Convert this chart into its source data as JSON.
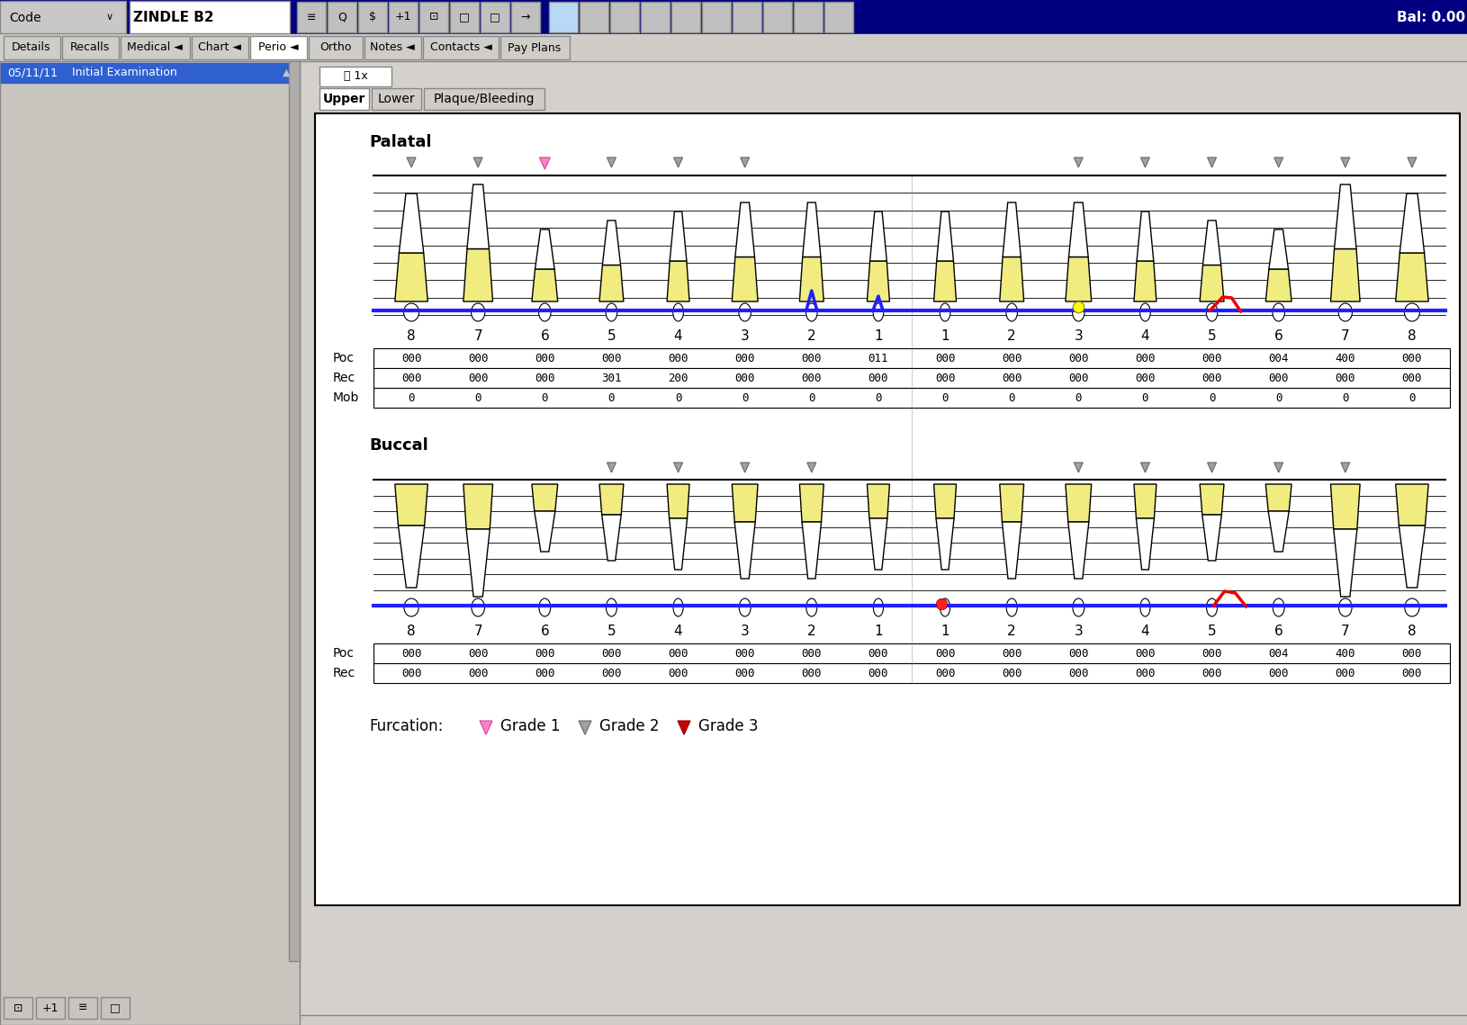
{
  "bg_color": "#d0cdc8",
  "toolbar_bg": "#000080",
  "patient_name": "ZINDLE B2",
  "bal_text": "Bal: 0.00",
  "tab_names": [
    "Details",
    "Recalls",
    "Medical ◄",
    "Chart ◄",
    "Perio ◄",
    "Ortho",
    "Notes ◄",
    "Contacts ◄",
    "Pay Plans"
  ],
  "active_tab_idx": 4,
  "sidebar_date": "05/11/11",
  "sidebar_label": "Initial Examination",
  "sub_tabs": [
    "Upper",
    "Lower",
    "Plaque/Bleeding"
  ],
  "zoom_text": "1x",
  "section_labels": [
    "Palatal",
    "Buccal"
  ],
  "tooth_numbers": [
    8,
    7,
    6,
    5,
    4,
    3,
    2,
    1,
    1,
    2,
    3,
    4,
    5,
    6,
    7,
    8
  ],
  "tooth_fill": "#f0ec80",
  "tooth_fill_dark": "#c8c040",
  "chart_area_bg": "#e8e8e8",
  "white": "#ffffff",
  "pal_poc": [
    "000",
    "000",
    "000",
    "000",
    "000",
    "000",
    "000",
    "011",
    "000",
    "000",
    "000",
    "000",
    "000",
    "004",
    "400",
    "000"
  ],
  "pal_rec": [
    "000",
    "000",
    "000",
    "301",
    "200",
    "000",
    "000",
    "000",
    "000",
    "000",
    "000",
    "000",
    "000",
    "000",
    "000",
    "000"
  ],
  "pal_mob": [
    "0",
    "0",
    "0",
    "0",
    "0",
    "0",
    "0",
    "0",
    "0",
    "0",
    "0",
    "0",
    "0",
    "0",
    "0",
    "0"
  ],
  "buc_poc": [
    "000",
    "000",
    "000",
    "000",
    "000",
    "000",
    "000",
    "000",
    "000",
    "000",
    "000",
    "000",
    "000",
    "004",
    "400",
    "000"
  ],
  "buc_rec": [
    "000",
    "000",
    "000",
    "000",
    "000",
    "000",
    "000",
    "000",
    "000",
    "000",
    "000",
    "000",
    "000",
    "000",
    "000",
    "000"
  ],
  "furc_pal_gray": [
    0,
    1,
    3,
    4,
    5,
    10,
    11,
    12,
    13,
    14,
    15
  ],
  "furc_pal_pink": [
    2
  ],
  "furc_buc_gray": [
    4,
    5,
    6,
    10,
    11,
    12,
    13,
    14
  ],
  "furc_buc_orange": [
    3
  ],
  "blue_line_color": "#2020ff",
  "red_line_color": "#ee0000",
  "yellow_dot_color": "#ffff00",
  "red_dot_color": "#ff2020",
  "furc_pink": "#ff80c0",
  "furc_gray": "#a0a0a0",
  "furc_red": "#cc0000"
}
